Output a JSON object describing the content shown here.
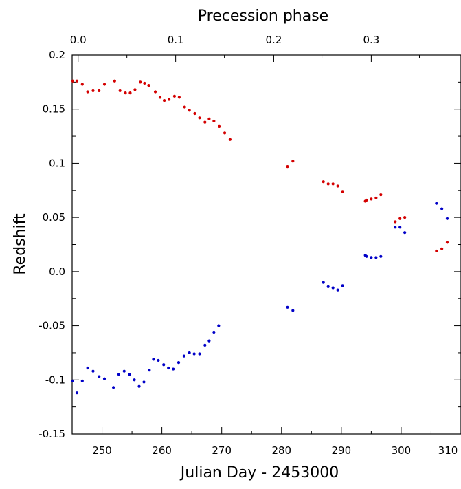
{
  "chart_data": {
    "type": "scatter",
    "title": "",
    "xlabel": "Julian Day - 2453000",
    "ylabel": "Redshift",
    "top_xlabel": "Precession phase",
    "xlim": [
      245,
      310
    ],
    "ylim": [
      -0.15,
      0.2
    ],
    "x_ticks": [
      250,
      260,
      270,
      280,
      290,
      300,
      310
    ],
    "x_tick_labels": [
      "250",
      "260",
      "270",
      "280",
      "290",
      "300",
      "310"
    ],
    "y_ticks": [
      -0.15,
      -0.1,
      -0.05,
      0.0,
      0.05,
      0.1,
      0.15,
      0.2
    ],
    "y_tick_labels": [
      "-0.15",
      "-0.1",
      "-0.05",
      "0.0",
      "0.05",
      "0.1",
      "0.15",
      "0.2"
    ],
    "top_ticks": [
      {
        "day": 246.0,
        "label": "0.0"
      },
      {
        "day": 262.3,
        "label": "0.1"
      },
      {
        "day": 278.7,
        "label": "0.2"
      },
      {
        "day": 295.0,
        "label": "0.3"
      }
    ],
    "grid": false,
    "series": [
      {
        "name": "red",
        "color": "#d40000",
        "points": [
          [
            245.1,
            0.176
          ],
          [
            245.8,
            0.176
          ],
          [
            246.7,
            0.173
          ],
          [
            247.6,
            0.166
          ],
          [
            248.5,
            0.167
          ],
          [
            249.5,
            0.167
          ],
          [
            250.4,
            0.173
          ],
          [
            252.1,
            0.176
          ],
          [
            253.0,
            0.167
          ],
          [
            253.9,
            0.165
          ],
          [
            254.7,
            0.165
          ],
          [
            255.5,
            0.168
          ],
          [
            256.4,
            0.175
          ],
          [
            257.1,
            0.174
          ],
          [
            257.8,
            0.172
          ],
          [
            258.9,
            0.166
          ],
          [
            259.7,
            0.161
          ],
          [
            260.4,
            0.158
          ],
          [
            261.2,
            0.159
          ],
          [
            262.1,
            0.162
          ],
          [
            262.9,
            0.161
          ],
          [
            263.8,
            0.152
          ],
          [
            264.6,
            0.149
          ],
          [
            265.5,
            0.146
          ],
          [
            266.3,
            0.142
          ],
          [
            267.2,
            0.138
          ],
          [
            267.9,
            0.141
          ],
          [
            268.7,
            0.139
          ],
          [
            269.6,
            0.134
          ],
          [
            270.5,
            0.128
          ],
          [
            271.4,
            0.122
          ],
          [
            281.0,
            0.097
          ],
          [
            281.9,
            0.102
          ],
          [
            287.0,
            0.083
          ],
          [
            287.8,
            0.081
          ],
          [
            288.6,
            0.081
          ],
          [
            289.4,
            0.079
          ],
          [
            290.2,
            0.074
          ],
          [
            294.0,
            0.065
          ],
          [
            294.2,
            0.066
          ],
          [
            295.0,
            0.067
          ],
          [
            295.8,
            0.068
          ],
          [
            296.6,
            0.071
          ],
          [
            299.0,
            0.046
          ],
          [
            299.8,
            0.049
          ],
          [
            300.6,
            0.05
          ],
          [
            305.9,
            0.019
          ],
          [
            306.8,
            0.021
          ],
          [
            307.7,
            0.027
          ]
        ]
      },
      {
        "name": "blue",
        "color": "#0000c8",
        "points": [
          [
            245.1,
            -0.101
          ],
          [
            245.8,
            -0.112
          ],
          [
            246.7,
            -0.101
          ],
          [
            247.6,
            -0.089
          ],
          [
            248.5,
            -0.092
          ],
          [
            249.5,
            -0.097
          ],
          [
            250.4,
            -0.099
          ],
          [
            251.9,
            -0.107
          ],
          [
            252.8,
            -0.095
          ],
          [
            253.7,
            -0.092
          ],
          [
            254.6,
            -0.095
          ],
          [
            255.4,
            -0.1
          ],
          [
            256.2,
            -0.106
          ],
          [
            257.0,
            -0.102
          ],
          [
            257.9,
            -0.091
          ],
          [
            258.6,
            -0.081
          ],
          [
            259.4,
            -0.082
          ],
          [
            260.3,
            -0.086
          ],
          [
            261.1,
            -0.089
          ],
          [
            261.9,
            -0.09
          ],
          [
            262.8,
            -0.084
          ],
          [
            263.7,
            -0.078
          ],
          [
            264.6,
            -0.075
          ],
          [
            265.4,
            -0.076
          ],
          [
            266.3,
            -0.076
          ],
          [
            267.2,
            -0.068
          ],
          [
            267.9,
            -0.064
          ],
          [
            268.7,
            -0.056
          ],
          [
            269.5,
            -0.05
          ],
          [
            281.0,
            -0.033
          ],
          [
            281.9,
            -0.036
          ],
          [
            287.0,
            -0.01
          ],
          [
            287.8,
            -0.014
          ],
          [
            288.6,
            -0.015
          ],
          [
            289.4,
            -0.017
          ],
          [
            290.2,
            -0.013
          ],
          [
            294.0,
            0.015
          ],
          [
            294.2,
            0.014
          ],
          [
            295.0,
            0.013
          ],
          [
            295.8,
            0.013
          ],
          [
            296.6,
            0.014
          ],
          [
            299.0,
            0.041
          ],
          [
            299.8,
            0.041
          ],
          [
            300.6,
            0.036
          ],
          [
            305.9,
            0.063
          ],
          [
            306.8,
            0.058
          ],
          [
            307.7,
            0.049
          ]
        ]
      }
    ]
  }
}
